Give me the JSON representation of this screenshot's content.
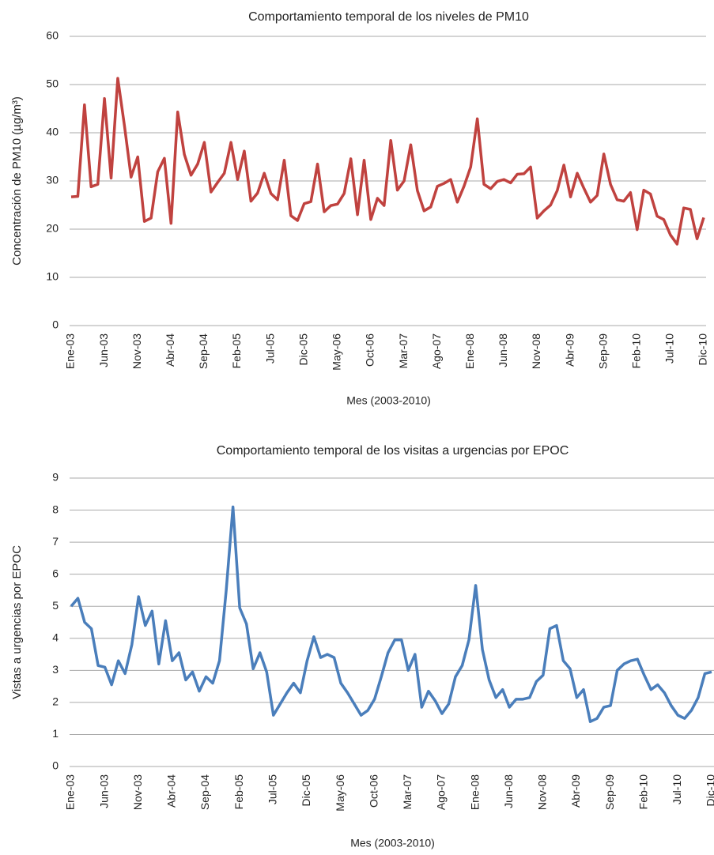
{
  "chart_data": [
    {
      "type": "line",
      "title": "Comportamiento temporal de los niveles de PM10",
      "xlabel": "Mes (2003-2010)",
      "ylabel": "Concentración de PM10 (µg/m³)",
      "categories": [
        "Ene-03",
        null,
        null,
        null,
        null,
        "Jun-03",
        null,
        null,
        null,
        null,
        "Nov-03",
        null,
        null,
        null,
        null,
        "Abr-04",
        null,
        null,
        null,
        null,
        "Sep-04",
        null,
        null,
        null,
        null,
        "Feb-05",
        null,
        null,
        null,
        null,
        "Jul-05",
        null,
        null,
        null,
        null,
        "Dic-05",
        null,
        null,
        null,
        null,
        "May-06",
        null,
        null,
        null,
        null,
        "Oct-06",
        null,
        null,
        null,
        null,
        "Mar-07",
        null,
        null,
        null,
        null,
        "Ago-07",
        null,
        null,
        null,
        null,
        "Ene-08",
        null,
        null,
        null,
        null,
        "Jun-08",
        null,
        null,
        null,
        null,
        "Nov-08",
        null,
        null,
        null,
        null,
        "Abr-09",
        null,
        null,
        null,
        null,
        "Sep-09",
        null,
        null,
        null,
        null,
        "Feb-10",
        null,
        null,
        null,
        null,
        "Jul-10",
        null,
        null,
        null,
        null,
        "Dic-10"
      ],
      "values": [
        26.7,
        26.8,
        45.8,
        28.8,
        29.3,
        47.1,
        30.6,
        51.3,
        41.5,
        30.8,
        35.0,
        21.6,
        22.3,
        31.9,
        34.7,
        21.2,
        44.3,
        35.5,
        31.2,
        33.5,
        38.0,
        27.7,
        29.7,
        31.6,
        38.0,
        30.3,
        36.2,
        25.8,
        27.5,
        31.6,
        27.4,
        26.1,
        34.3,
        22.8,
        21.8,
        25.3,
        25.7,
        33.5,
        23.6,
        24.9,
        25.2,
        27.4,
        34.6,
        23.0,
        34.3,
        22.0,
        26.4,
        24.9,
        38.4,
        28.1,
        30.0,
        37.5,
        28.0,
        23.8,
        24.6,
        28.9,
        29.5,
        30.3,
        25.6,
        28.9,
        32.9,
        42.9,
        29.3,
        28.4,
        29.9,
        30.3,
        29.6,
        31.4,
        31.5,
        32.9,
        22.3,
        23.8,
        25.0,
        28.0,
        33.3,
        26.7,
        31.6,
        28.5,
        25.6,
        27.0,
        35.6,
        29.3,
        26.1,
        25.8,
        27.6,
        19.9,
        28.1,
        27.3,
        22.7,
        22.0,
        18.8,
        16.9,
        24.4,
        24.1,
        18.0,
        22.4
      ],
      "color": "#c0423f",
      "ylim": [
        0,
        60
      ],
      "yticks": [
        0,
        10,
        20,
        30,
        40,
        50,
        60
      ],
      "grid": true
    },
    {
      "type": "line",
      "title": "Comportamiento temporal de los visitas a urgencias por EPOC",
      "xlabel": "Mes (2003-2010)",
      "ylabel": "Vistas a urgencias por EPOC",
      "categories": [
        "Ene-03",
        null,
        null,
        null,
        null,
        "Jun-03",
        null,
        null,
        null,
        null,
        "Nov-03",
        null,
        null,
        null,
        null,
        "Abr-04",
        null,
        null,
        null,
        null,
        "Sep-04",
        null,
        null,
        null,
        null,
        "Feb-05",
        null,
        null,
        null,
        null,
        "Jul-05",
        null,
        null,
        null,
        null,
        "Dic-05",
        null,
        null,
        null,
        null,
        "May-06",
        null,
        null,
        null,
        null,
        "Oct-06",
        null,
        null,
        null,
        null,
        "Mar-07",
        null,
        null,
        null,
        null,
        "Ago-07",
        null,
        null,
        null,
        null,
        "Ene-08",
        null,
        null,
        null,
        null,
        "Jun-08",
        null,
        null,
        null,
        null,
        "Nov-08",
        null,
        null,
        null,
        null,
        "Abr-09",
        null,
        null,
        null,
        null,
        "Sep-09",
        null,
        null,
        null,
        null,
        "Feb-10",
        null,
        null,
        null,
        null,
        "Jul-10",
        null,
        null,
        null,
        null,
        "Dic-10"
      ],
      "values": [
        5.0,
        5.25,
        4.5,
        4.3,
        3.15,
        3.1,
        2.55,
        3.3,
        2.9,
        3.8,
        5.3,
        4.4,
        4.85,
        3.2,
        4.55,
        3.3,
        3.55,
        2.7,
        2.95,
        2.35,
        2.8,
        2.6,
        3.3,
        5.5,
        8.1,
        4.95,
        4.45,
        3.05,
        3.55,
        2.95,
        1.6,
        1.95,
        2.3,
        2.6,
        2.3,
        3.3,
        4.05,
        3.4,
        3.5,
        3.4,
        2.6,
        2.3,
        1.95,
        1.6,
        1.75,
        2.1,
        2.8,
        3.55,
        3.95,
        3.95,
        3.0,
        3.5,
        1.85,
        2.35,
        2.05,
        1.65,
        1.95,
        2.8,
        3.15,
        3.95,
        5.65,
        3.65,
        2.7,
        2.15,
        2.4,
        1.85,
        2.1,
        2.1,
        2.15,
        2.65,
        2.85,
        4.3,
        4.4,
        3.3,
        3.05,
        2.15,
        2.4,
        1.4,
        1.5,
        1.85,
        1.9,
        3.0,
        3.2,
        3.3,
        3.35,
        2.85,
        2.4,
        2.55,
        2.3,
        1.9,
        1.6,
        1.5,
        1.75,
        2.15,
        2.9,
        2.95
      ],
      "color": "#4a7ebb",
      "ylim": [
        0,
        9
      ],
      "yticks": [
        0,
        1,
        2,
        3,
        4,
        5,
        6,
        7,
        8,
        9
      ],
      "grid": true
    }
  ]
}
